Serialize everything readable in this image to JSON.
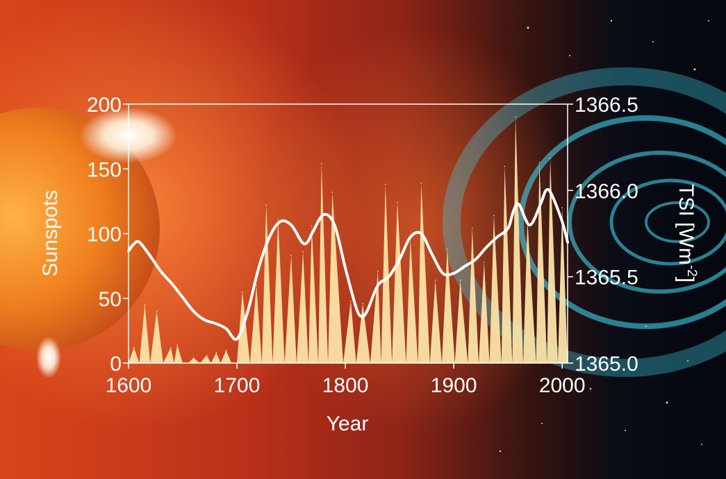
{
  "chart_data": {
    "type": "area",
    "title": "",
    "xlabel": "Year",
    "ylabel": "Sunspots",
    "y2label": "TSI [Wm",
    "y2label_exp": "-2",
    "y2label_close": "]",
    "xlim": [
      1600,
      2005
    ],
    "ylim": [
      0,
      200
    ],
    "y2lim": [
      1365.0,
      1366.5
    ],
    "x_ticks": [
      1600,
      1700,
      1800,
      1900,
      2000
    ],
    "y_ticks": [
      0,
      50,
      100,
      150,
      200
    ],
    "y2_ticks": [
      "1365.0",
      "1365.5",
      "1366.0",
      "1366.5"
    ],
    "grid": false,
    "colors": {
      "sunspots": "#fbe3a6",
      "tsi": "#ffffff",
      "frame": "#ffffff"
    },
    "series": [
      {
        "name": "Sunspots",
        "axis": "left",
        "peaks": [
          [
            1605,
            12
          ],
          [
            1615,
            45
          ],
          [
            1626,
            40
          ],
          [
            1639,
            12
          ],
          [
            1645,
            14
          ],
          [
            1660,
            4
          ],
          [
            1672,
            6
          ],
          [
            1681,
            8
          ],
          [
            1690,
            10
          ],
          [
            1705,
            55
          ],
          [
            1718,
            60
          ],
          [
            1727,
            122
          ],
          [
            1738,
            111
          ],
          [
            1750,
            83
          ],
          [
            1761,
            86
          ],
          [
            1769,
            106
          ],
          [
            1778,
            154
          ],
          [
            1788,
            132
          ],
          [
            1805,
            48
          ],
          [
            1816,
            46
          ],
          [
            1830,
            71
          ],
          [
            1837,
            138
          ],
          [
            1848,
            124
          ],
          [
            1860,
            96
          ],
          [
            1870,
            139
          ],
          [
            1883,
            64
          ],
          [
            1894,
            88
          ],
          [
            1906,
            64
          ],
          [
            1917,
            104
          ],
          [
            1928,
            78
          ],
          [
            1937,
            114
          ],
          [
            1947,
            152
          ],
          [
            1957,
            190
          ],
          [
            1968,
            110
          ],
          [
            1979,
            155
          ],
          [
            1989,
            158
          ],
          [
            2000,
            120
          ]
        ],
        "minima": [
          [
            1600,
            0
          ],
          [
            1610,
            0
          ],
          [
            1620,
            0
          ],
          [
            1632,
            0
          ],
          [
            1642,
            0
          ],
          [
            1650,
            0
          ],
          [
            1655,
            0
          ],
          [
            1666,
            0
          ],
          [
            1676,
            0
          ],
          [
            1685,
            0
          ],
          [
            1695,
            0
          ],
          [
            1700,
            0
          ],
          [
            1712,
            0
          ],
          [
            1723,
            0
          ],
          [
            1733,
            0
          ],
          [
            1744,
            0
          ],
          [
            1755,
            0
          ],
          [
            1766,
            0
          ],
          [
            1775,
            0
          ],
          [
            1784,
            0
          ],
          [
            1798,
            0
          ],
          [
            1810,
            0
          ],
          [
            1823,
            0
          ],
          [
            1833,
            0
          ],
          [
            1843,
            0
          ],
          [
            1856,
            0
          ],
          [
            1867,
            0
          ],
          [
            1878,
            0
          ],
          [
            1889,
            0
          ],
          [
            1901,
            0
          ],
          [
            1913,
            0
          ],
          [
            1923,
            0
          ],
          [
            1933,
            0
          ],
          [
            1944,
            0
          ],
          [
            1954,
            0
          ],
          [
            1964,
            0
          ],
          [
            1976,
            0
          ],
          [
            1986,
            0
          ],
          [
            1996,
            0
          ],
          [
            2005,
            0
          ]
        ]
      },
      {
        "name": "TSI",
        "axis": "right",
        "x": [
          1600,
          1605,
          1610,
          1620,
          1630,
          1640,
          1650,
          1660,
          1670,
          1680,
          1690,
          1700,
          1710,
          1720,
          1730,
          1740,
          1750,
          1760,
          1765,
          1770,
          1780,
          1790,
          1800,
          1810,
          1815,
          1820,
          1830,
          1840,
          1850,
          1860,
          1870,
          1880,
          1890,
          1900,
          1910,
          1920,
          1930,
          1940,
          1950,
          1955,
          1960,
          1970,
          1980,
          1985,
          1990,
          2000,
          2005
        ],
        "values": [
          1365.65,
          1365.69,
          1365.7,
          1365.62,
          1365.53,
          1365.46,
          1365.38,
          1365.3,
          1365.25,
          1365.23,
          1365.2,
          1365.14,
          1365.3,
          1365.55,
          1365.73,
          1365.82,
          1365.8,
          1365.7,
          1365.7,
          1365.76,
          1365.86,
          1365.8,
          1365.55,
          1365.32,
          1365.27,
          1365.3,
          1365.45,
          1365.5,
          1365.6,
          1365.73,
          1365.75,
          1365.63,
          1365.52,
          1365.52,
          1365.56,
          1365.6,
          1365.67,
          1365.73,
          1365.78,
          1365.88,
          1365.92,
          1365.8,
          1365.92,
          1366.0,
          1365.98,
          1365.82,
          1365.7
        ]
      }
    ]
  }
}
